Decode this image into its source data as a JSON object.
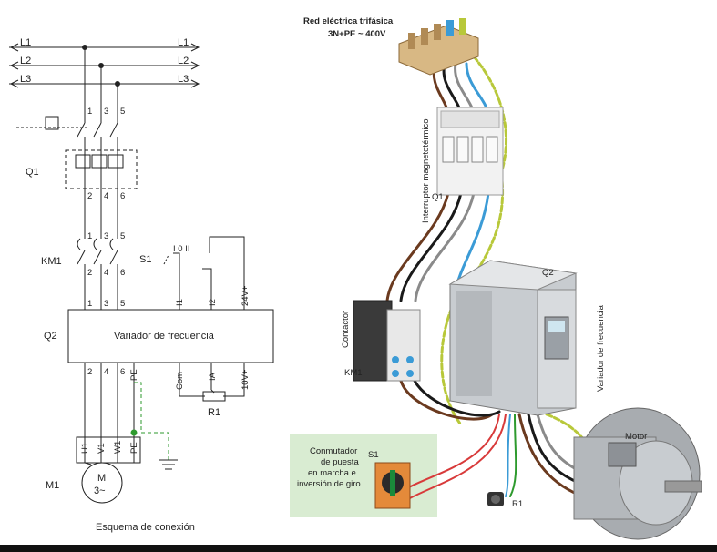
{
  "schematic": {
    "lines": [
      "L1",
      "L2",
      "L3"
    ],
    "breaker": {
      "label": "Q1",
      "top_terminals": [
        "1",
        "3",
        "5"
      ],
      "bottom_terminals": [
        "2",
        "4",
        "6"
      ]
    },
    "contactor": {
      "label": "KM1",
      "top_terminals": [
        "1",
        "3",
        "5"
      ],
      "bottom_terminals": [
        "2",
        "4",
        "6"
      ]
    },
    "switch": {
      "label": "S1",
      "positions": "I 0 II"
    },
    "drive": {
      "label": "Q2",
      "title": "Variador de frecuencia",
      "inputs": [
        "1",
        "3",
        "5"
      ],
      "control_inputs": [
        "I1",
        "I2",
        "24V+"
      ],
      "outputs": [
        "2",
        "4",
        "6",
        "PE"
      ],
      "analog": [
        "Com",
        "IA",
        "10V+"
      ]
    },
    "pot_label": "R1",
    "motor": {
      "label": "M1",
      "symbol": "M",
      "sub": "3~",
      "terminals": [
        "U1",
        "V1",
        "W1",
        "PE"
      ]
    },
    "caption": "Esquema de conexión"
  },
  "illustration": {
    "network_label_line1": "Red eléctrica trifásica",
    "network_label_line2": "3N+PE ~ 400V",
    "breaker_caption": "Interruptor magnetotérmico",
    "breaker_tag": "Q1",
    "contactor_caption": "Contactor",
    "contactor_tag": "KM1",
    "drive_caption": "Variador de frecuencia",
    "drive_tag": "Q2",
    "motor_caption": "Motor",
    "switch_caption": [
      "Conmutador",
      "de puesta",
      "en marcha e",
      "inversión de giro"
    ],
    "switch_tag": "S1",
    "pot_tag": "R1"
  },
  "colors": {
    "wire_brown": "#6b3a1f",
    "wire_black": "#1a1a1a",
    "wire_grey": "#8a8a8a",
    "wire_blue": "#3b9bd6",
    "wire_pe": "#b8c83a",
    "wire_red": "#d83a3a",
    "ground_dash": "#2e9a2e",
    "panel_green": "#d9ecd2"
  }
}
